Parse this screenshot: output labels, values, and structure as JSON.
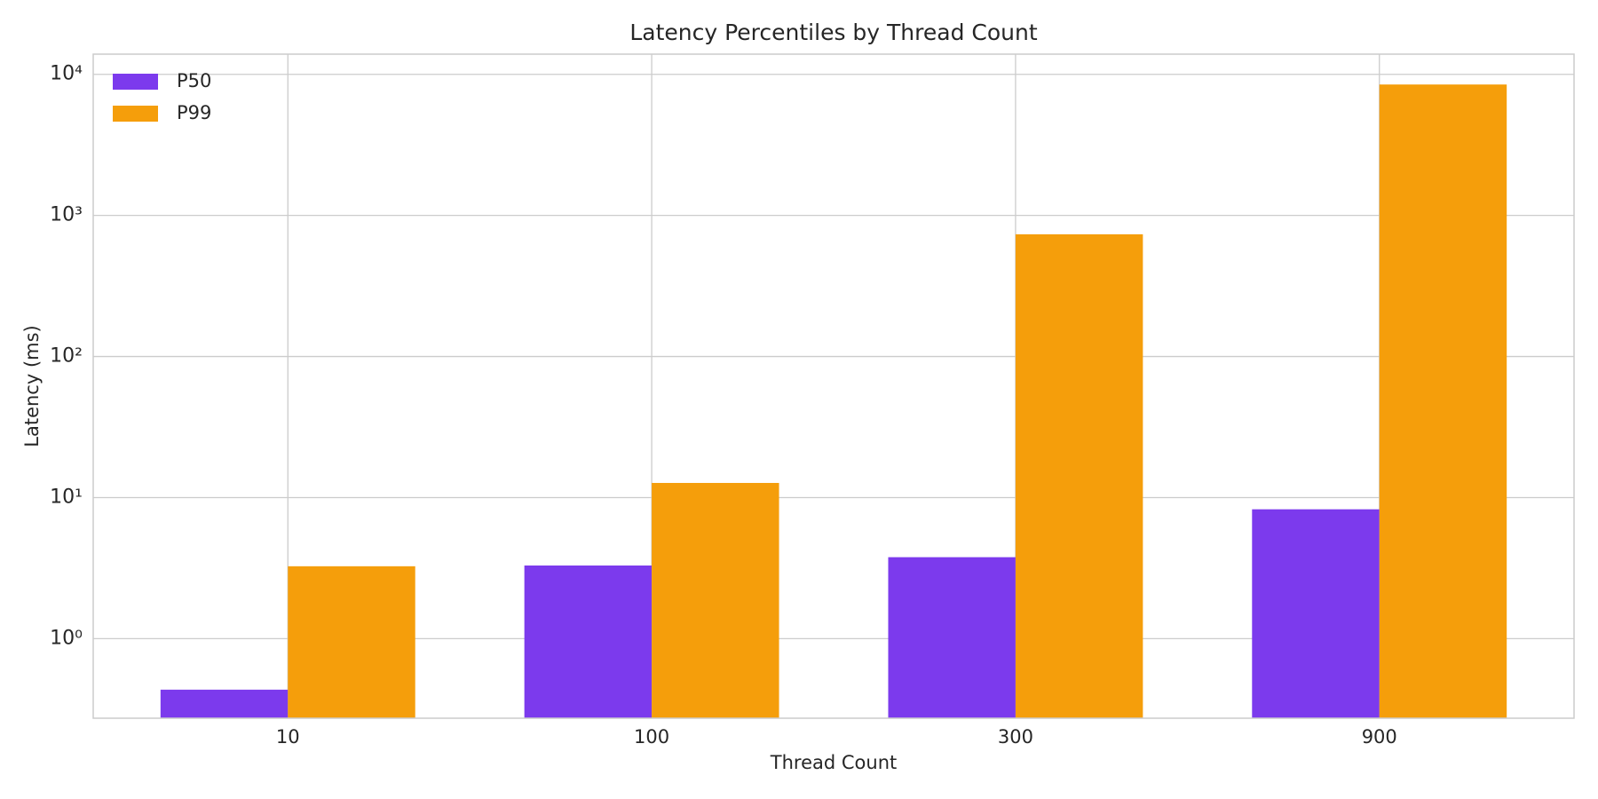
{
  "chart_data": {
    "type": "bar",
    "title": "Latency Percentiles by Thread Count",
    "xlabel": "Thread Count",
    "ylabel": "Latency (ms)",
    "categories": [
      "10",
      "100",
      "300",
      "900"
    ],
    "series": [
      {
        "name": "P50",
        "color": "#7c3aed",
        "values": [
          0.435,
          3.3,
          3.78,
          8.26
        ]
      },
      {
        "name": "P99",
        "color": "#f59e0b",
        "values": [
          3.26,
          12.7,
          735,
          8470
        ]
      }
    ],
    "ylim": [
      0.273,
      13900
    ],
    "yticks": [
      {
        "value": 1,
        "label": "10⁰"
      },
      {
        "value": 10,
        "label": "10¹"
      },
      {
        "value": 100,
        "label": "10²"
      },
      {
        "value": 1000,
        "label": "10³"
      },
      {
        "value": 10000,
        "label": "10⁴"
      }
    ],
    "log_y": true,
    "grid": true,
    "legend": "upper left"
  }
}
